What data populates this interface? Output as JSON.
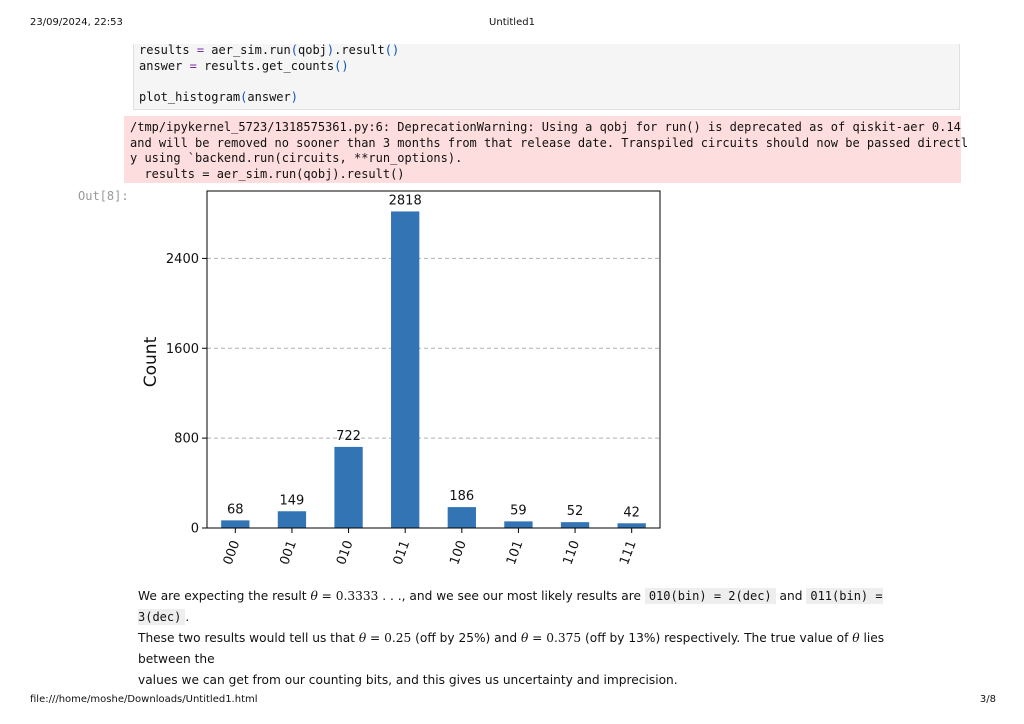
{
  "header": {
    "datetime": "23/09/2024, 22:53",
    "title": "Untitled1"
  },
  "footer": {
    "url": "file:///home/moshe/Downloads/Untitled1.html",
    "page": "3/8"
  },
  "code_cell": {
    "lines": [
      {
        "var": "results",
        "op": "=",
        "expr_a": "aer_sim.run",
        "arg": "qobj",
        "expr_b": ".result",
        "tail": "()"
      },
      {
        "var": "answer",
        "op": "=",
        "expr_a": "results.get_counts",
        "arg": "",
        "expr_b": "",
        "tail": ""
      },
      {
        "call": "plot_histogram",
        "arg": "answer"
      }
    ]
  },
  "warning": {
    "lines": [
      "/tmp/ipykernel_5723/1318575361.py:6: DeprecationWarning: Using a qobj for run() is deprecated as of qiskit-aer 0.14",
      "and will be removed no sooner than 3 months from that release date. Transpiled circuits should now be passed directl",
      "y using `backend.run(circuits, **run_options).",
      "  results = aer_sim.run(qobj).result()"
    ]
  },
  "output_prompt": "Out[8]:",
  "chart_data": {
    "type": "bar",
    "categories": [
      "000",
      "001",
      "010",
      "011",
      "100",
      "101",
      "110",
      "111"
    ],
    "values": [
      68,
      149,
      722,
      2818,
      186,
      59,
      52,
      42
    ],
    "data_labels": [
      "68",
      "149",
      "722",
      "2818",
      "186",
      "59",
      "52",
      "42"
    ],
    "title": "",
    "xlabel": "",
    "ylabel": "Count",
    "ylim": [
      0,
      3000
    ],
    "yticks": [
      0,
      800,
      1600,
      2400
    ],
    "grid": "horizontal dashed",
    "bar_color": "#3274b4"
  },
  "prose": {
    "l1_a": "We are expecting the result ",
    "l1_theta": "θ",
    "l1_eq": " = 0.3333 . . .",
    "l1_b": ", and we see our most likely results are ",
    "l1_code1": "010(bin) = 2(dec)",
    "l1_and": " and ",
    "l1_code2": "011(bin) = 3(dec)",
    "l1_end": ".",
    "l2_a": "These two results would tell us that ",
    "l2_theta1": "θ",
    "l2_eq1": " = 0.25",
    "l2_b": " (off by 25%) and ",
    "l2_theta2": "θ",
    "l2_eq2": " = 0.375",
    "l2_c": " (off by 13%) respectively. The true value of ",
    "l2_theta3": "θ",
    "l2_d": " lies between the",
    "l3": "values we can get from our counting bits, and this gives us uncertainty and imprecision."
  }
}
